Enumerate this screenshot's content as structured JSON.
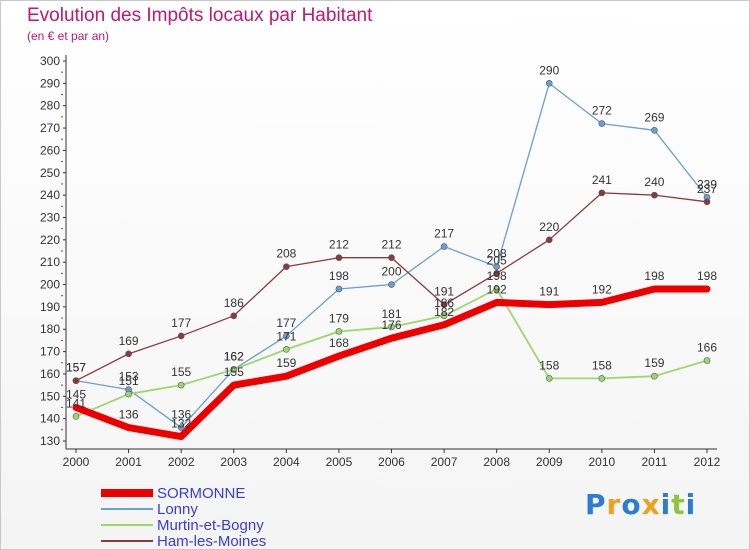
{
  "header": {
    "title": "Evolution des Impôts locaux par Habitant",
    "subtitle": "(en € et par an)"
  },
  "chart_data": {
    "type": "line",
    "categories": [
      "2000",
      "2001",
      "2002",
      "2003",
      "2004",
      "2005",
      "2006",
      "2007",
      "2008",
      "2009",
      "2010",
      "2011",
      "2012"
    ],
    "ylim": [
      130,
      300
    ],
    "yticks": [
      130,
      140,
      150,
      160,
      170,
      180,
      190,
      200,
      210,
      220,
      230,
      240,
      250,
      260,
      270,
      280,
      290,
      300
    ],
    "grid": false,
    "series": [
      {
        "name": "SORMONNE",
        "color": "#ee0000",
        "values": [
          145,
          136,
          132,
          155,
          159,
          168,
          176,
          182,
          192,
          191,
          192,
          198,
          198
        ]
      },
      {
        "name": "Lonny",
        "color": "#6a9fd3",
        "values": [
          157,
          153,
          136,
          162,
          177,
          198,
          200,
          217,
          208,
          290,
          272,
          269,
          239
        ]
      },
      {
        "name": "Murtin-et-Bogny",
        "color": "#9ad86e",
        "values": [
          141,
          151,
          155,
          162,
          171,
          179,
          181,
          186,
          198,
          158,
          158,
          159,
          166
        ]
      },
      {
        "name": "Ham-les-Moines",
        "color": "#8b3a3a",
        "values": [
          157,
          169,
          177,
          186,
          208,
          212,
          212,
          191,
          205,
          220,
          241,
          240,
          237
        ]
      }
    ]
  },
  "legend": {
    "items": [
      {
        "label": "SORMONNE",
        "color": "#ee0000"
      },
      {
        "label": "Lonny",
        "color": "#6a9fd3"
      },
      {
        "label": "Murtin-et-Bogny",
        "color": "#9ad86e"
      },
      {
        "label": "Ham-les-Moines",
        "color": "#8b3a3a"
      }
    ]
  },
  "logo": {
    "letters": [
      "P",
      "r",
      "o",
      "x",
      "i",
      "t",
      "i"
    ],
    "colors": [
      "#2a7dd1",
      "#f0a020",
      "#2a7dd1",
      "#f0a020",
      "#2a7dd1",
      "#8cc63f",
      "#2a7dd1"
    ]
  }
}
